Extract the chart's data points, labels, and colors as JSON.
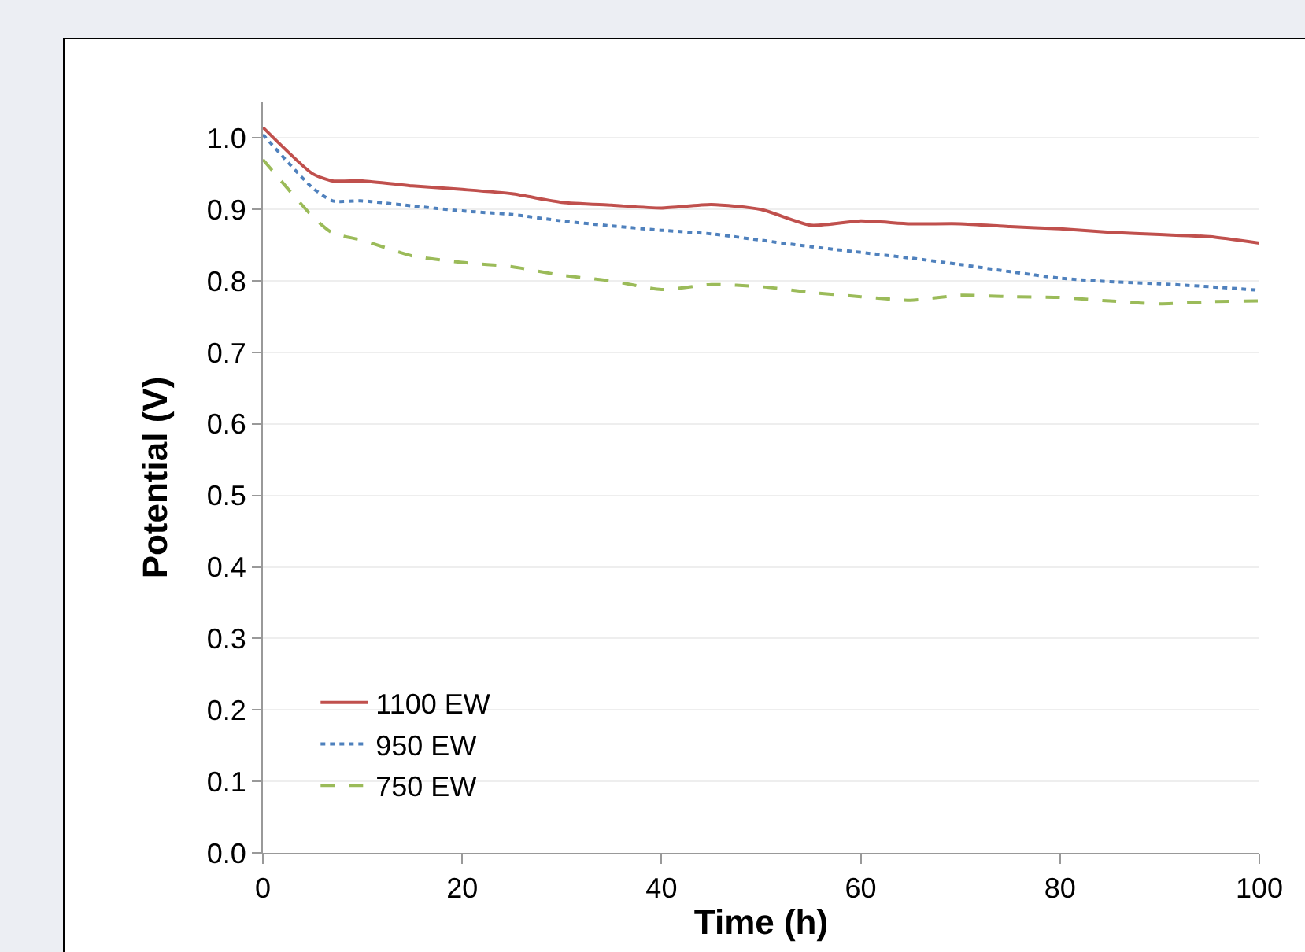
{
  "chart_data": {
    "type": "line",
    "xlabel": "Time (h)",
    "ylabel": "Potential (V)",
    "x": [
      0,
      5,
      7,
      10,
      15,
      20,
      25,
      30,
      35,
      40,
      45,
      50,
      55,
      60,
      65,
      70,
      75,
      80,
      85,
      90,
      95,
      100
    ],
    "series": [
      {
        "name": "1100 EW",
        "color": "#c0504d",
        "line_style": "solid",
        "values": [
          1.015,
          0.95,
          0.94,
          0.94,
          0.933,
          0.928,
          0.922,
          0.91,
          0.906,
          0.902,
          0.907,
          0.9,
          0.878,
          0.884,
          0.88,
          0.88,
          0.876,
          0.873,
          0.868,
          0.865,
          0.862,
          0.853
        ]
      },
      {
        "name": "950 EW",
        "color": "#4f81bd",
        "line_style": "dotted",
        "values": [
          1.005,
          0.93,
          0.912,
          0.912,
          0.905,
          0.898,
          0.893,
          0.884,
          0.877,
          0.871,
          0.866,
          0.857,
          0.848,
          0.84,
          0.832,
          0.823,
          0.813,
          0.804,
          0.799,
          0.796,
          0.792,
          0.787
        ]
      },
      {
        "name": "750 EW",
        "color": "#9bbb59",
        "line_style": "dashed",
        "values": [
          0.97,
          0.89,
          0.867,
          0.857,
          0.835,
          0.826,
          0.82,
          0.808,
          0.8,
          0.788,
          0.795,
          0.792,
          0.784,
          0.778,
          0.773,
          0.78,
          0.778,
          0.777,
          0.772,
          0.768,
          0.771,
          0.772
        ]
      }
    ],
    "xlim": [
      0,
      100
    ],
    "xticks": [
      0,
      20,
      40,
      60,
      80,
      100
    ],
    "ylim": [
      0,
      1.05
    ],
    "yticks": [
      {
        "value": 0,
        "label": "0.0"
      },
      {
        "value": 0.1,
        "label": "0.1"
      },
      {
        "value": 0.2,
        "label": "0.2"
      },
      {
        "value": 0.3,
        "label": "0.3"
      },
      {
        "value": 0.4,
        "label": "0.4"
      },
      {
        "value": 0.5,
        "label": "0.5"
      },
      {
        "value": 0.6,
        "label": "0.6"
      },
      {
        "value": 0.7,
        "label": "0.7"
      },
      {
        "value": 0.8,
        "label": "0.8"
      },
      {
        "value": 0.9,
        "label": "0.9"
      },
      {
        "value": 1,
        "label": "1.0"
      }
    ],
    "grid": "y",
    "legend": "bottom left",
    "marker": "none"
  }
}
